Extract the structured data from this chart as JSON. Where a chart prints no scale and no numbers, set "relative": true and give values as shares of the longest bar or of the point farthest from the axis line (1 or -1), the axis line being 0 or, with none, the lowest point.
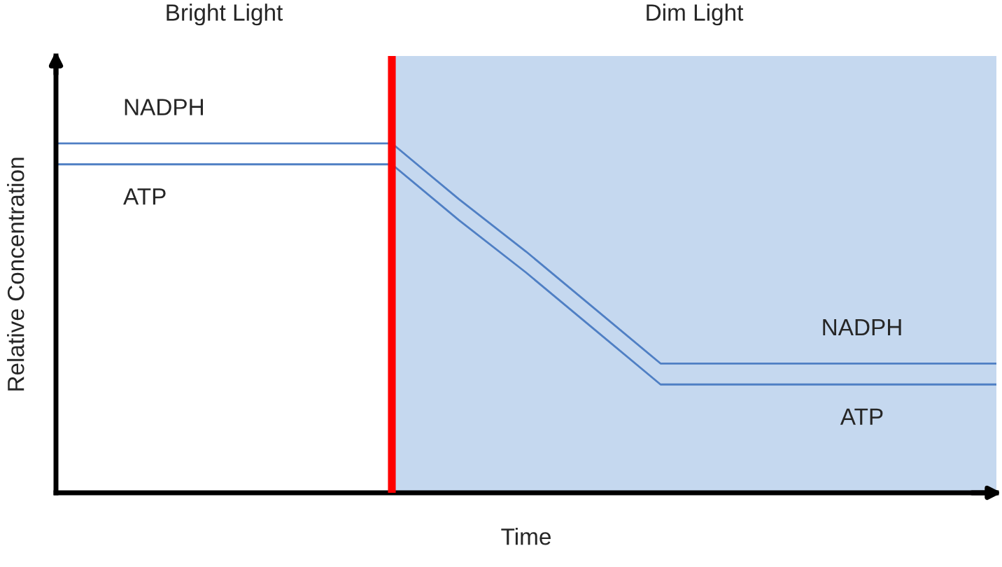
{
  "chart_data": {
    "type": "line",
    "relative": true,
    "xlabel": "Time",
    "ylabel": "Relative Concentration",
    "categories": [
      null,
      null,
      null,
      null,
      null,
      null,
      null,
      null,
      null,
      null,
      null,
      null,
      null,
      null,
      null
    ],
    "series": [
      {
        "name": "NADPH",
        "color": "#4f7fc4",
        "values": [
          1,
          1,
          1,
          1,
          1,
          1,
          0.84,
          0.69,
          0.53,
          0.37,
          0.37,
          0.37,
          0.37,
          0.37,
          0.37
        ]
      },
      {
        "name": "ATP",
        "color": "#4f7fc4",
        "values": [
          0.94,
          0.94,
          0.94,
          0.94,
          0.94,
          0.94,
          0.78,
          0.63,
          0.47,
          0.31,
          0.31,
          0.31,
          0.31,
          0.31,
          0.31
        ]
      }
    ],
    "annotations": [
      "Bright Light",
      "Dim Light"
    ],
    "legend": false,
    "marker": "none",
    "line_style": "solid"
  }
}
